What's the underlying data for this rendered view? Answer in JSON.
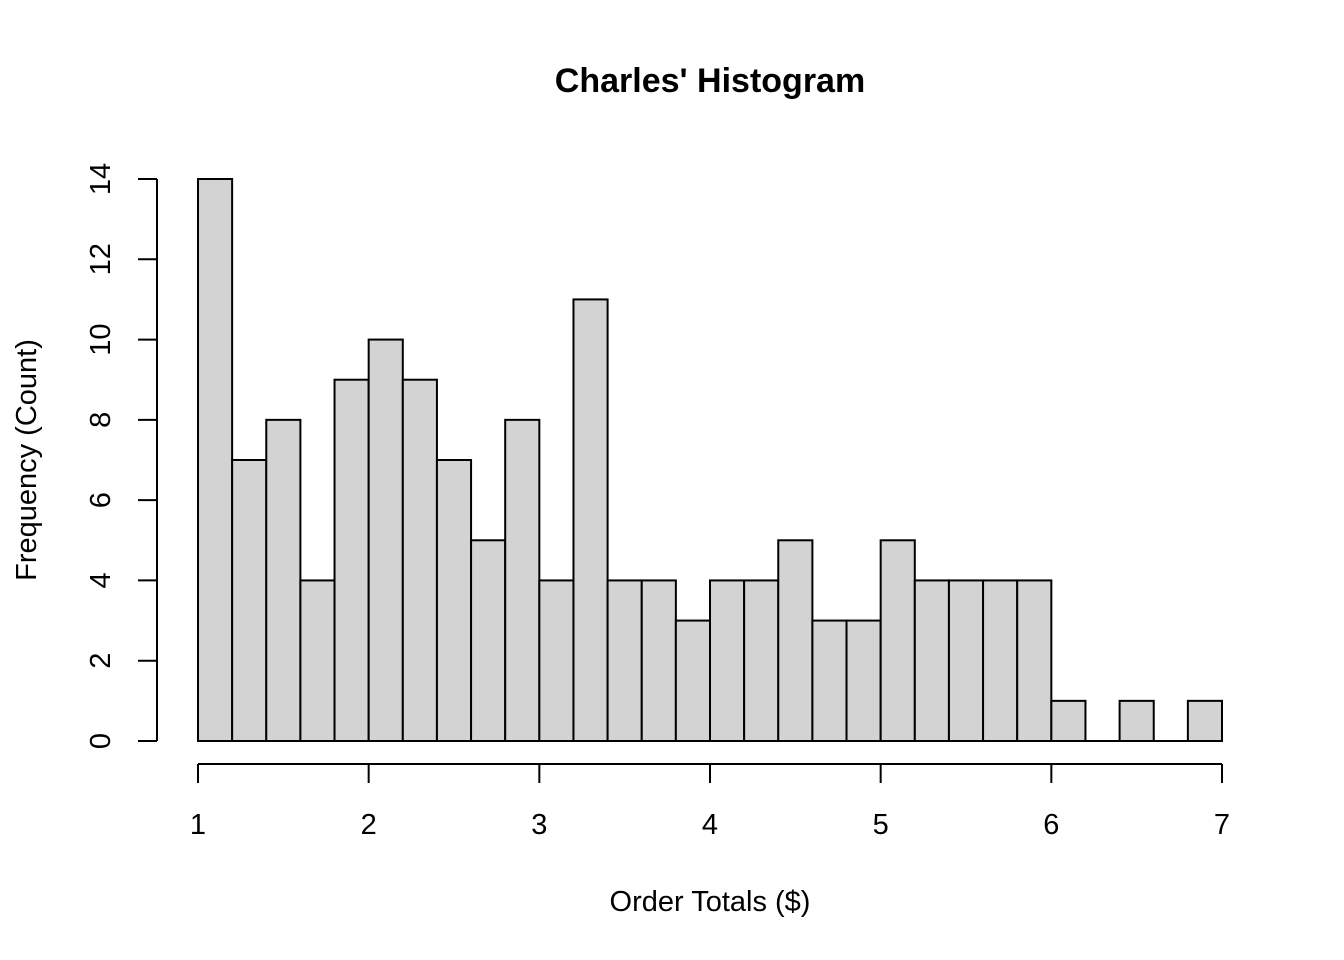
{
  "chart_data": {
    "type": "bar",
    "title": "Charles' Histogram",
    "xlabel": "Order Totals ($)",
    "ylabel": "Frequency (Count)",
    "bin_width": 0.2,
    "bin_start": 1.0,
    "values": [
      14,
      7,
      8,
      4,
      9,
      10,
      9,
      7,
      5,
      8,
      4,
      11,
      4,
      4,
      3,
      4,
      4,
      5,
      3,
      3,
      5,
      4,
      4,
      4,
      4,
      1,
      0,
      1,
      0,
      1
    ],
    "xlim": [
      1,
      7
    ],
    "ylim": [
      0,
      14
    ],
    "x_ticks": [
      1,
      2,
      3,
      4,
      5,
      6,
      7
    ],
    "y_ticks": [
      0,
      2,
      4,
      6,
      8,
      10,
      12,
      14
    ],
    "grid": false,
    "colors": {
      "bar_fill": "#d3d3d3",
      "bar_stroke": "#000000"
    }
  }
}
